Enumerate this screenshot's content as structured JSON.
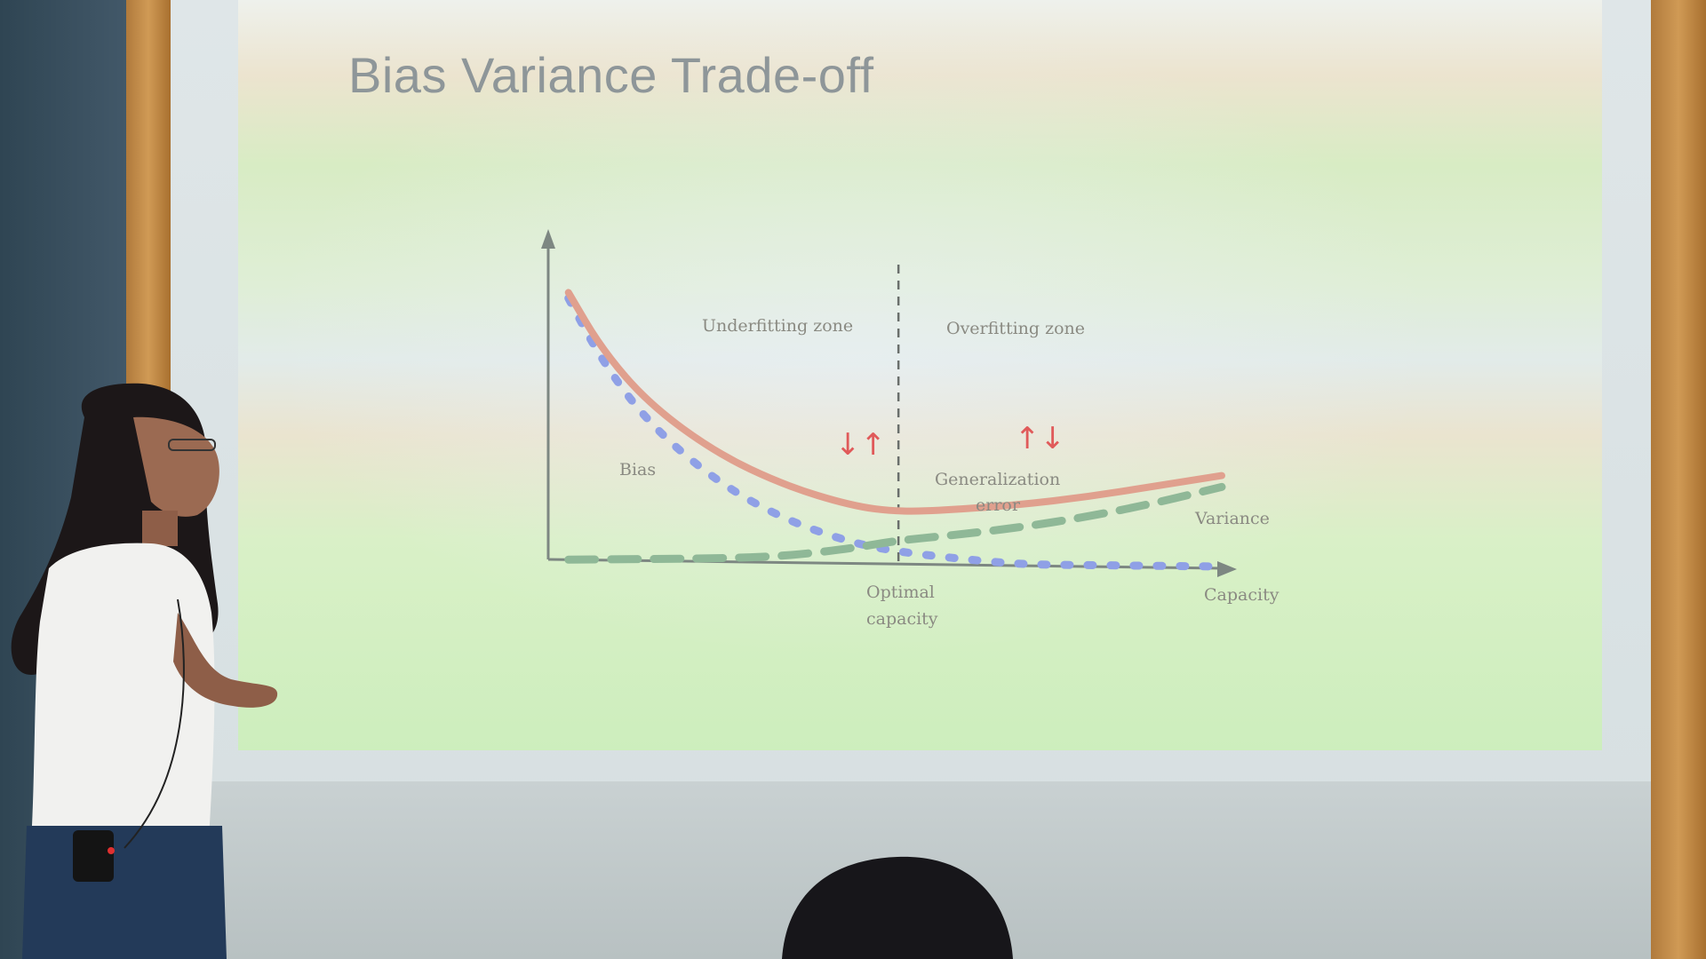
{
  "slide": {
    "title": "Bias Variance Trade-off"
  },
  "chart_data": {
    "type": "line",
    "xlabel": "Capacity",
    "ylabel": "",
    "zones": [
      "Underfitting zone",
      "Overfitting zone"
    ],
    "optimal_label": [
      "Optimal",
      "capacity"
    ],
    "curve_labels": {
      "bias": "Bias",
      "generalization": [
        "Generalization",
        "error"
      ],
      "variance": "Variance"
    },
    "series": [
      {
        "name": "Bias",
        "style": "dotted",
        "color": "#8fa0e6",
        "x": [
          0.03,
          0.08,
          0.15,
          0.25,
          0.35,
          0.45,
          0.52,
          0.6,
          0.7,
          0.8,
          0.9,
          1.0
        ],
        "y": [
          0.92,
          0.7,
          0.48,
          0.28,
          0.15,
          0.07,
          0.04,
          0.02,
          0.0,
          0.0,
          0.0,
          0.0
        ]
      },
      {
        "name": "Generalization error",
        "style": "solid",
        "color": "#e0a08e",
        "x": [
          0.03,
          0.08,
          0.15,
          0.25,
          0.35,
          0.45,
          0.52,
          0.6,
          0.7,
          0.8,
          0.9,
          1.0
        ],
        "y": [
          0.94,
          0.74,
          0.55,
          0.38,
          0.27,
          0.2,
          0.18,
          0.19,
          0.21,
          0.24,
          0.28,
          0.32
        ]
      },
      {
        "name": "Variance",
        "style": "dashed",
        "color": "#8fb897",
        "x": [
          0.03,
          0.15,
          0.25,
          0.35,
          0.45,
          0.52,
          0.6,
          0.7,
          0.8,
          0.9,
          1.0
        ],
        "y": [
          0.0,
          0.005,
          0.01,
          0.02,
          0.05,
          0.08,
          0.1,
          0.13,
          0.17,
          0.22,
          0.28
        ]
      }
    ],
    "optimal_x": 0.52,
    "xlim": [
      0,
      1
    ],
    "ylim": [
      0,
      1
    ],
    "annotations": {
      "left_arrows": "↓↑",
      "right_arrows": "↑↓",
      "color": "#e05a5a"
    }
  }
}
